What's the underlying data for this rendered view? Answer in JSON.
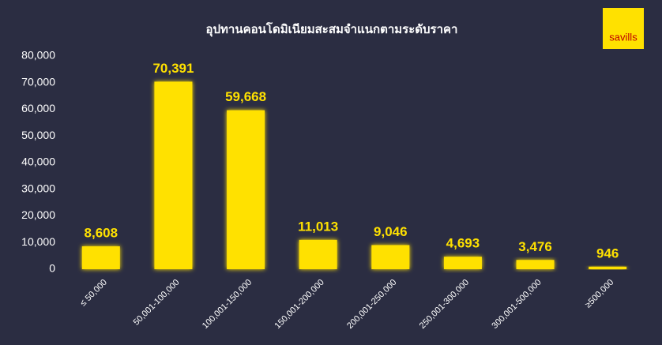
{
  "logo": "savills",
  "chart_data": {
    "type": "bar",
    "title": "อุปทานคอนโดมิเนียมสะสมจำแนกตามระดับราคา",
    "categories": [
      "≤ 50,000",
      "50,001-100,000",
      "100,001-150,000",
      "150,001-200,000",
      "200,001-250,000",
      "250,001-300,000",
      "300,001-500,000",
      "≥500,000"
    ],
    "values": [
      8608,
      70391,
      59668,
      11013,
      9046,
      4693,
      3476,
      946
    ],
    "value_labels": [
      "8,608",
      "70,391",
      "59,668",
      "11,013",
      "9,046",
      "4,693",
      "3,476",
      "946"
    ],
    "color": "#ffe100",
    "ylim": [
      0,
      80000
    ],
    "yticks": [
      0,
      {
        "value": 10000,
        "label": "10,000"
      },
      {
        "value": 20000,
        "label": "20,000"
      },
      {
        "value": 30000,
        "label": "30,000"
      },
      {
        "value": 40000,
        "label": "40,000"
      },
      {
        "value": 50000,
        "label": "50,000"
      },
      {
        "value": 60000,
        "label": "60,000"
      },
      {
        "value": 70000,
        "label": "70,000"
      },
      {
        "value": 80000,
        "label": "80,000"
      }
    ],
    "grid": false
  }
}
